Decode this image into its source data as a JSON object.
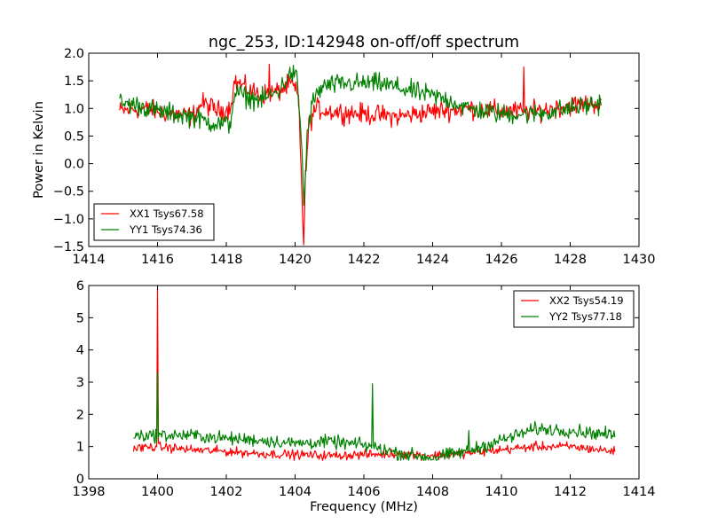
{
  "chart_data": [
    {
      "type": "line",
      "title": "ngc_253, ID:142948 on-off/off spectrum",
      "xlabel": "",
      "ylabel": "Power in Kelvin",
      "xlim": [
        1414,
        1430
      ],
      "ylim": [
        -1.5,
        2.0
      ],
      "xticks": [
        "1414",
        "1416",
        "1418",
        "1420",
        "1422",
        "1424",
        "1426",
        "1428",
        "1430"
      ],
      "yticks": [
        "−1.5",
        "−1.0",
        "−0.5",
        "0.0",
        "0.5",
        "1.0",
        "1.5",
        "2.0"
      ],
      "grid": false,
      "legend_position": "lower-left",
      "series": [
        {
          "name": "XX1 Tsys67.58",
          "color": "#ff0000",
          "x_range": [
            1414.9,
            1428.9
          ],
          "profile": [
            [
              1414.9,
              0.95
            ],
            [
              1415.5,
              1.0
            ],
            [
              1416.0,
              0.95
            ],
            [
              1416.5,
              0.9
            ],
            [
              1417.0,
              0.85
            ],
            [
              1417.3,
              1.1
            ],
            [
              1417.8,
              0.95
            ],
            [
              1418.1,
              1.0
            ],
            [
              1418.25,
              1.5
            ],
            [
              1418.6,
              1.35
            ],
            [
              1419.0,
              1.25
            ],
            [
              1419.5,
              1.3
            ],
            [
              1419.9,
              1.45
            ],
            [
              1420.1,
              1.2
            ],
            [
              1420.2,
              -0.5
            ],
            [
              1420.25,
              -1.5
            ],
            [
              1420.3,
              -0.3
            ],
            [
              1420.4,
              0.7
            ],
            [
              1420.6,
              1.0
            ],
            [
              1421.0,
              0.95
            ],
            [
              1422.0,
              0.9
            ],
            [
              1423.0,
              0.85
            ],
            [
              1424.0,
              0.95
            ],
            [
              1425.0,
              1.0
            ],
            [
              1426.0,
              0.95
            ],
            [
              1427.0,
              0.95
            ],
            [
              1428.0,
              1.05
            ],
            [
              1428.9,
              1.1
            ]
          ],
          "spikes": [
            [
              1419.25,
              1.8
            ],
            [
              1426.65,
              1.75
            ]
          ],
          "noise": 0.09
        },
        {
          "name": "YY1 Tsys74.36",
          "color": "#008000",
          "x_range": [
            1414.9,
            1428.9
          ],
          "profile": [
            [
              1414.9,
              1.1
            ],
            [
              1415.5,
              1.05
            ],
            [
              1416.0,
              0.95
            ],
            [
              1416.5,
              0.9
            ],
            [
              1417.0,
              0.85
            ],
            [
              1417.5,
              0.75
            ],
            [
              1418.1,
              0.7
            ],
            [
              1418.25,
              1.3
            ],
            [
              1418.6,
              1.2
            ],
            [
              1419.0,
              1.15
            ],
            [
              1419.5,
              1.3
            ],
            [
              1419.9,
              1.65
            ],
            [
              1420.05,
              1.55
            ],
            [
              1420.2,
              0.3
            ],
            [
              1420.25,
              -0.8
            ],
            [
              1420.35,
              0.5
            ],
            [
              1420.5,
              1.1
            ],
            [
              1420.8,
              1.4
            ],
            [
              1421.5,
              1.45
            ],
            [
              1422.5,
              1.45
            ],
            [
              1423.5,
              1.3
            ],
            [
              1424.5,
              1.15
            ],
            [
              1425.0,
              1.0
            ],
            [
              1426.0,
              0.9
            ],
            [
              1427.0,
              0.9
            ],
            [
              1428.0,
              1.0
            ],
            [
              1428.9,
              1.1
            ]
          ],
          "spikes": [],
          "noise": 0.09
        }
      ]
    },
    {
      "type": "line",
      "title": "",
      "xlabel": "Frequency (MHz)",
      "ylabel": "",
      "xlim": [
        1398,
        1414
      ],
      "ylim": [
        0,
        6
      ],
      "xticks": [
        "1398",
        "1400",
        "1402",
        "1404",
        "1406",
        "1408",
        "1410",
        "1412",
        "1414"
      ],
      "yticks": [
        "0",
        "1",
        "2",
        "3",
        "4",
        "5",
        "6"
      ],
      "grid": false,
      "legend_position": "upper-right",
      "series": [
        {
          "name": "XX2 Tsys54.19",
          "color": "#ff0000",
          "x_range": [
            1399.3,
            1413.3
          ],
          "profile": [
            [
              1399.3,
              0.95
            ],
            [
              1400.0,
              1.0
            ],
            [
              1401.0,
              0.9
            ],
            [
              1402.0,
              0.85
            ],
            [
              1403.0,
              0.78
            ],
            [
              1404.0,
              0.75
            ],
            [
              1405.0,
              0.72
            ],
            [
              1406.0,
              0.75
            ],
            [
              1407.0,
              0.78
            ],
            [
              1408.0,
              0.72
            ],
            [
              1409.0,
              0.8
            ],
            [
              1410.0,
              0.9
            ],
            [
              1411.0,
              1.0
            ],
            [
              1412.0,
              1.0
            ],
            [
              1413.3,
              0.85
            ]
          ],
          "spikes": [
            [
              1400.0,
              5.9
            ]
          ],
          "noise": 0.07
        },
        {
          "name": "YY2 Tsys77.18",
          "color": "#008000",
          "x_range": [
            1399.3,
            1413.3
          ],
          "profile": [
            [
              1399.3,
              1.35
            ],
            [
              1400.0,
              1.35
            ],
            [
              1401.0,
              1.35
            ],
            [
              1402.0,
              1.25
            ],
            [
              1403.0,
              1.2
            ],
            [
              1404.0,
              1.1
            ],
            [
              1405.0,
              1.15
            ],
            [
              1406.0,
              1.05
            ],
            [
              1407.0,
              0.8
            ],
            [
              1408.0,
              0.65
            ],
            [
              1409.0,
              0.85
            ],
            [
              1410.0,
              1.2
            ],
            [
              1411.0,
              1.55
            ],
            [
              1412.0,
              1.5
            ],
            [
              1413.3,
              1.35
            ]
          ],
          "spikes": [
            [
              1400.0,
              3.3
            ],
            [
              1406.25,
              2.95
            ],
            [
              1409.05,
              1.5
            ]
          ],
          "noise": 0.1
        }
      ]
    }
  ]
}
